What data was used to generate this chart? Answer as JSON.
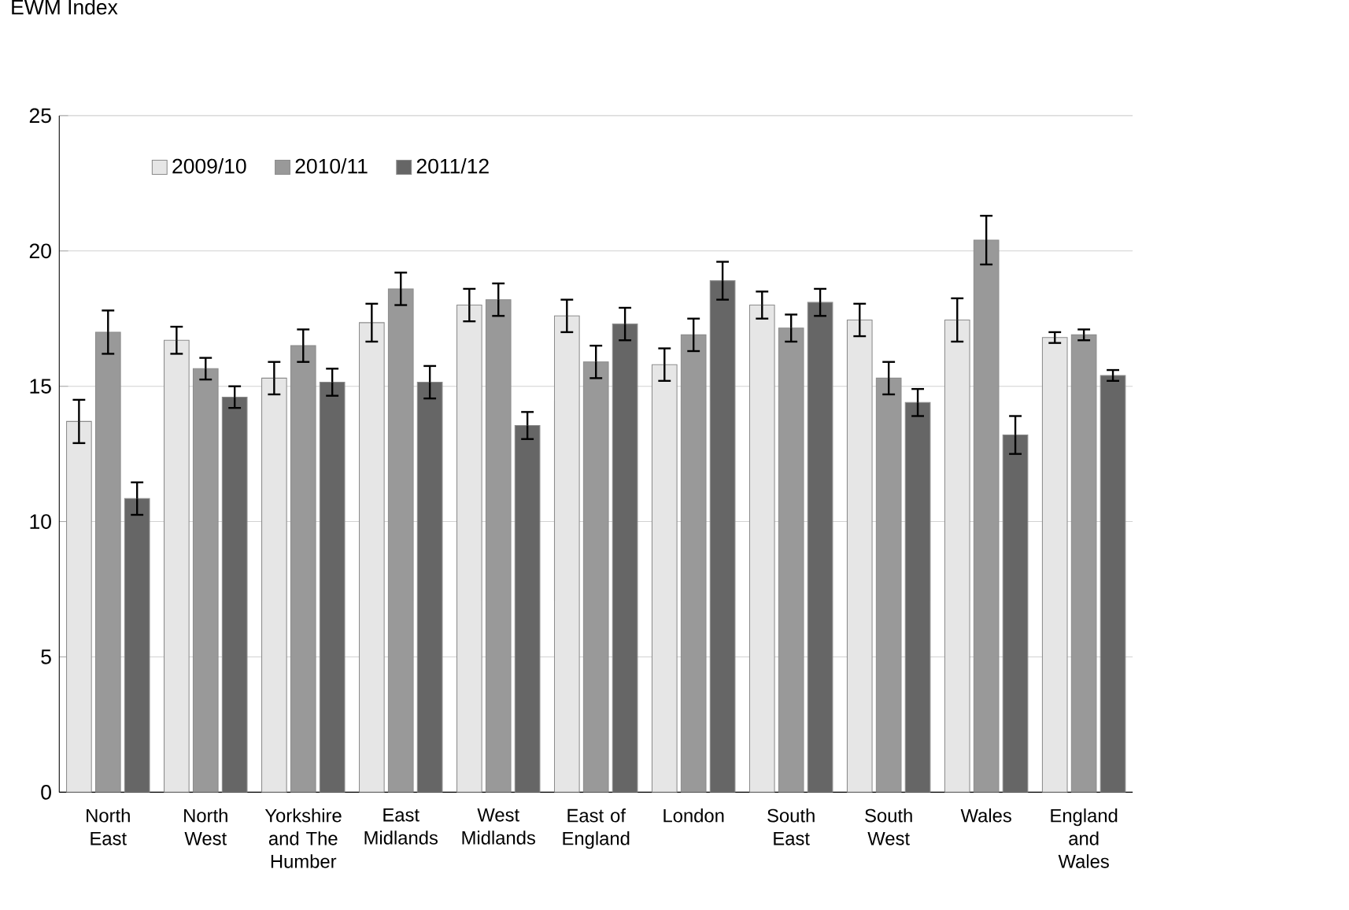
{
  "chart_data": {
    "type": "bar",
    "ylabel": "EWM Index",
    "categories": [
      "North East",
      "North West",
      "Yorkshire and The Humber",
      "East Midlands",
      "West Midlands",
      "East of England",
      "London",
      "South East",
      "South West",
      "Wales",
      "England and Wales"
    ],
    "series": [
      {
        "name": "2009/10",
        "color": "#e6e6e6",
        "values": [
          13.7,
          16.7,
          15.3,
          17.35,
          18.0,
          17.6,
          15.8,
          18.0,
          17.45,
          17.45,
          16.8
        ],
        "errors": [
          0.8,
          0.5,
          0.6,
          0.7,
          0.6,
          0.6,
          0.6,
          0.5,
          0.6,
          0.8,
          0.2
        ]
      },
      {
        "name": "2010/11",
        "color": "#999999",
        "values": [
          17.0,
          15.65,
          16.5,
          18.6,
          18.2,
          15.9,
          16.9,
          17.15,
          15.3,
          20.4,
          16.9
        ],
        "errors": [
          0.8,
          0.4,
          0.6,
          0.6,
          0.6,
          0.6,
          0.6,
          0.5,
          0.6,
          0.9,
          0.2
        ]
      },
      {
        "name": "2011/12",
        "color": "#666666",
        "values": [
          10.85,
          14.6,
          15.15,
          15.15,
          13.55,
          17.3,
          18.9,
          18.1,
          14.4,
          13.2,
          15.4
        ],
        "errors": [
          0.6,
          0.4,
          0.5,
          0.6,
          0.5,
          0.6,
          0.7,
          0.5,
          0.5,
          0.7,
          0.2
        ]
      }
    ],
    "ylim": [
      0,
      25
    ],
    "yticks": [
      0,
      5,
      10,
      15,
      20,
      25
    ],
    "grid": "y",
    "legend": "top left"
  }
}
